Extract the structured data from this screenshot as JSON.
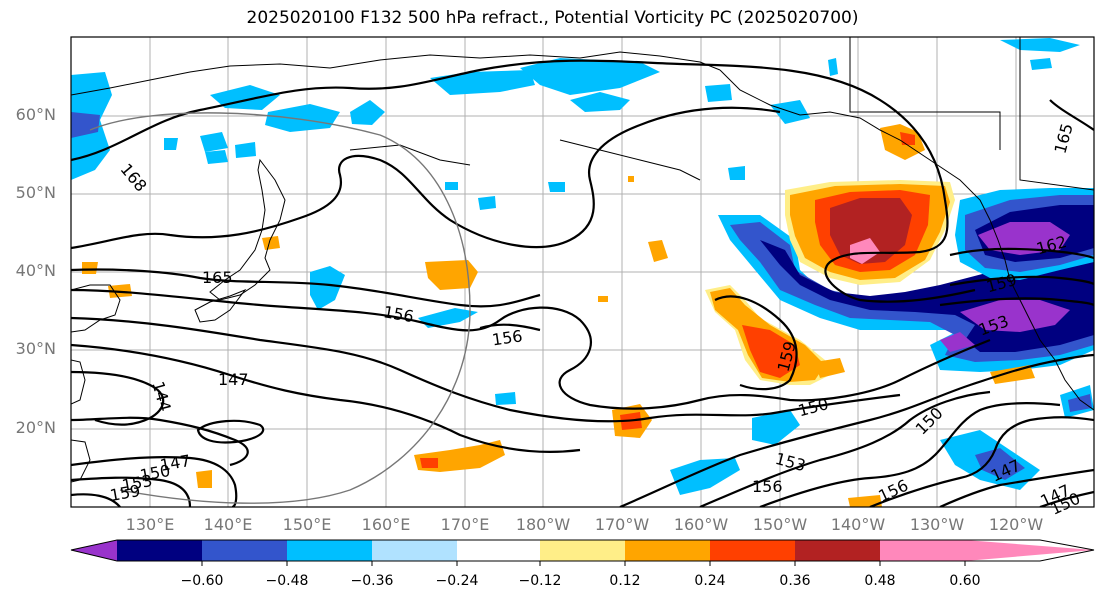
{
  "title": "2025020100 F132 500 hPa refract., Potential Vorticity PC (2025020700)",
  "lat_ticks": [
    "60°N",
    "50°N",
    "40°N",
    "30°N",
    "20°N"
  ],
  "lon_ticks": [
    "130°E",
    "140°E",
    "150°E",
    "160°E",
    "170°E",
    "180°W",
    "170°W",
    "160°W",
    "150°W",
    "140°W",
    "130°W",
    "120°W"
  ],
  "contour_labels": [
    "168",
    "165",
    "156",
    "156",
    "147",
    "144",
    "147",
    "150",
    "153",
    "159",
    "159",
    "150",
    "153",
    "156",
    "150",
    "156",
    "147",
    "147",
    "150",
    "159",
    "162",
    "153",
    "165"
  ],
  "colorbar": {
    "colors": [
      "#9933cc",
      "#000080",
      "#3355cc",
      "#00bfff",
      "#b0e2ff",
      "#ffffff",
      "#ffee88",
      "#ffa500",
      "#ff4000",
      "#b22222",
      "#ff88bb"
    ],
    "labels": [
      "−0.60",
      "−0.48",
      "−0.36",
      "−0.24",
      "−0.12",
      "0.12",
      "0.24",
      "0.36",
      "0.48",
      "0.60"
    ]
  }
}
